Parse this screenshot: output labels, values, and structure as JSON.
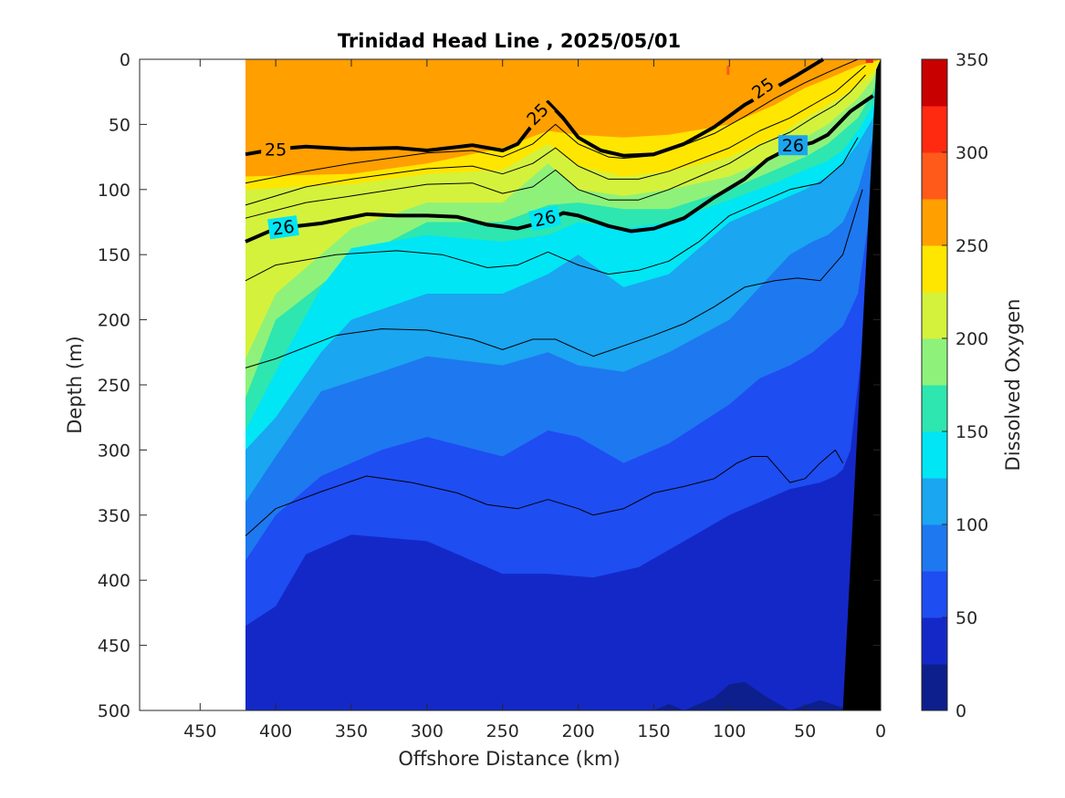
{
  "chart_data": {
    "type": "filled-contour section",
    "title": "Trinidad Head Line , 2025/05/01",
    "xlabel": "Offshore Distance (km)",
    "ylabel": "Depth (m)",
    "colorbar_label": "Dissolved Oxygen",
    "x_reversed": true,
    "xlim": [
      0,
      490
    ],
    "ylim": [
      0,
      500
    ],
    "y_reversed": true,
    "x_ticks": [
      450,
      400,
      350,
      300,
      250,
      200,
      150,
      100,
      50,
      0
    ],
    "y_ticks": [
      0,
      50,
      100,
      150,
      200,
      250,
      300,
      350,
      400,
      450,
      500
    ],
    "data_extent_km": [
      0,
      420
    ],
    "colorbar": {
      "ticks": [
        0,
        50,
        100,
        150,
        200,
        250,
        300,
        350
      ],
      "levels": [
        0,
        25,
        50,
        75,
        100,
        125,
        150,
        175,
        200,
        225,
        250,
        275,
        300,
        325,
        350
      ],
      "colors": [
        "#0c1f8c",
        "#1428c8",
        "#1e4df2",
        "#1e78f0",
        "#1aa6f0",
        "#00e6f5",
        "#2ee6b0",
        "#8ef27a",
        "#d4f23c",
        "#ffe600",
        "#ff9f00",
        "#ff5a1a",
        "#ff2a10",
        "#c80000"
      ]
    },
    "oxygen_boundaries": [
      {
        "level": 250,
        "x": [
          420,
          350,
          300,
          250,
          220,
          200,
          170,
          140,
          100,
          70,
          50,
          35,
          25,
          15,
          5,
          0
        ],
        "depth": [
          90,
          88,
          80,
          68,
          55,
          58,
          60,
          58,
          50,
          35,
          22,
          15,
          10,
          5,
          2,
          0
        ]
      },
      {
        "level": 225,
        "x": [
          420,
          350,
          300,
          250,
          220,
          200,
          170,
          140,
          100,
          70,
          50,
          35,
          25,
          15,
          5,
          0
        ],
        "depth": [
          100,
          96,
          88,
          85,
          65,
          82,
          90,
          86,
          75,
          60,
          45,
          35,
          28,
          20,
          10,
          0
        ]
      },
      {
        "level": 200,
        "x": [
          420,
          400,
          350,
          300,
          250,
          220,
          200,
          170,
          140,
          100,
          70,
          50,
          35,
          25,
          15,
          5,
          0
        ],
        "depth": [
          230,
          180,
          130,
          110,
          110,
          80,
          100,
          105,
          100,
          90,
          75,
          60,
          50,
          40,
          30,
          15,
          0
        ]
      },
      {
        "level": 175,
        "x": [
          420,
          400,
          350,
          300,
          250,
          220,
          200,
          170,
          140,
          100,
          70,
          50,
          35,
          25,
          15,
          5,
          0
        ],
        "depth": [
          260,
          200,
          155,
          125,
          125,
          112,
          110,
          115,
          115,
          100,
          85,
          75,
          65,
          55,
          45,
          25,
          0
        ]
      },
      {
        "level": 150,
        "x": [
          420,
          400,
          370,
          350,
          300,
          250,
          220,
          200,
          170,
          140,
          100,
          70,
          50,
          35,
          25,
          15,
          5,
          0
        ],
        "depth": [
          285,
          240,
          175,
          145,
          135,
          140,
          135,
          125,
          130,
          125,
          108,
          95,
          85,
          78,
          70,
          55,
          35,
          0
        ]
      },
      {
        "level": 125,
        "x": [
          420,
          400,
          370,
          350,
          300,
          250,
          220,
          200,
          170,
          140,
          100,
          70,
          50,
          35,
          25,
          15,
          5,
          0
        ],
        "depth": [
          300,
          275,
          225,
          200,
          180,
          180,
          165,
          150,
          175,
          165,
          125,
          110,
          100,
          90,
          80,
          65,
          45,
          0
        ]
      },
      {
        "level": 100,
        "x": [
          420,
          400,
          370,
          330,
          300,
          250,
          220,
          200,
          170,
          140,
          100,
          80,
          60,
          45,
          35,
          25,
          15,
          5,
          0
        ],
        "depth": [
          340,
          305,
          255,
          240,
          228,
          235,
          225,
          235,
          240,
          225,
          200,
          175,
          150,
          140,
          135,
          125,
          100,
          60,
          0
        ]
      },
      {
        "level": 75,
        "x": [
          420,
          400,
          370,
          330,
          300,
          250,
          220,
          200,
          170,
          140,
          100,
          80,
          60,
          45,
          35,
          25,
          15,
          5,
          0
        ],
        "depth": [
          385,
          350,
          320,
          300,
          290,
          305,
          285,
          290,
          310,
          295,
          265,
          245,
          235,
          225,
          215,
          205,
          180,
          100,
          0
        ]
      },
      {
        "level": 50,
        "x": [
          420,
          400,
          380,
          350,
          300,
          250,
          220,
          190,
          160,
          130,
          100,
          80,
          60,
          40,
          30,
          25,
          20,
          10,
          0
        ],
        "depth": [
          435,
          420,
          380,
          365,
          370,
          395,
          395,
          398,
          390,
          370,
          350,
          340,
          330,
          325,
          320,
          315,
          300,
          200,
          0
        ]
      },
      {
        "level": 25,
        "x": [
          150,
          140,
          130,
          110,
          100,
          90,
          75,
          60,
          40,
          25,
          20,
          0
        ],
        "depth": [
          500,
          495,
          500,
          490,
          480,
          478,
          490,
          500,
          492,
          498,
          500,
          500
        ]
      }
    ],
    "density_contours": [
      {
        "label": "25",
        "bold": true,
        "x": [
          420,
          400,
          380,
          350,
          320,
          300,
          270,
          250,
          240,
          230,
          225,
          220,
          210,
          200,
          185,
          170,
          150,
          130,
          110,
          90,
          70,
          55,
          45,
          38
        ],
        "depth": [
          73,
          69,
          67,
          69,
          68,
          70,
          66,
          70,
          65,
          50,
          40,
          33,
          45,
          60,
          70,
          74,
          73,
          65,
          52,
          35,
          22,
          12,
          5,
          0
        ]
      },
      {
        "label": "26",
        "bold": true,
        "x": [
          420,
          400,
          370,
          340,
          320,
          300,
          280,
          260,
          240,
          220,
          210,
          200,
          180,
          165,
          150,
          130,
          110,
          90,
          75,
          60,
          45,
          35,
          20,
          10,
          5
        ],
        "depth": [
          140,
          130,
          126,
          119,
          120,
          120,
          121,
          127,
          130,
          124,
          118,
          120,
          128,
          132,
          130,
          122,
          106,
          92,
          77,
          68,
          64,
          58,
          40,
          32,
          28
        ]
      },
      {
        "label": "",
        "bold": false,
        "x": [
          420,
          380,
          350,
          300,
          270,
          250,
          230,
          215,
          200,
          180,
          170,
          150,
          130,
          110,
          90,
          70,
          50,
          35,
          25,
          15
        ],
        "depth": [
          95,
          86,
          80,
          72,
          70,
          75,
          65,
          50,
          65,
          75,
          76,
          74,
          66,
          57,
          44,
          30,
          18,
          10,
          5,
          0
        ]
      },
      {
        "label": "",
        "bold": false,
        "x": [
          420,
          380,
          350,
          300,
          270,
          250,
          230,
          215,
          200,
          180,
          160,
          140,
          120,
          100,
          80,
          60,
          45,
          30,
          20,
          10
        ],
        "depth": [
          112,
          98,
          92,
          84,
          82,
          88,
          80,
          68,
          82,
          92,
          92,
          86,
          77,
          68,
          55,
          45,
          35,
          25,
          15,
          5
        ]
      },
      {
        "label": "",
        "bold": false,
        "x": [
          420,
          380,
          350,
          300,
          270,
          250,
          230,
          215,
          200,
          180,
          160,
          140,
          120,
          100,
          80,
          60,
          45,
          30,
          20,
          10
        ],
        "depth": [
          122,
          110,
          105,
          96,
          95,
          103,
          98,
          85,
          100,
          108,
          108,
          100,
          90,
          80,
          66,
          56,
          45,
          35,
          25,
          12
        ]
      },
      {
        "label": "",
        "bold": false,
        "x": [
          420,
          400,
          360,
          320,
          290,
          260,
          240,
          220,
          200,
          180,
          160,
          140,
          120,
          100,
          80,
          60,
          40,
          25,
          15
        ],
        "depth": [
          170,
          158,
          150,
          147,
          150,
          160,
          158,
          148,
          158,
          165,
          162,
          155,
          140,
          120,
          110,
          100,
          95,
          80,
          60
        ]
      },
      {
        "label": "",
        "bold": false,
        "x": [
          420,
          400,
          360,
          330,
          300,
          270,
          250,
          230,
          215,
          200,
          190,
          170,
          150,
          130,
          110,
          90,
          70,
          55,
          40,
          25,
          12
        ],
        "depth": [
          237,
          230,
          212,
          207,
          208,
          215,
          223,
          215,
          215,
          223,
          228,
          220,
          212,
          203,
          190,
          175,
          170,
          168,
          170,
          150,
          100
        ]
      },
      {
        "label": "",
        "bold": false,
        "x": [
          420,
          400,
          370,
          340,
          310,
          280,
          260,
          240,
          220,
          200,
          190,
          170,
          150,
          130,
          110,
          95,
          85,
          75,
          60,
          50,
          40,
          30,
          25
        ],
        "depth": [
          366,
          345,
          332,
          320,
          325,
          333,
          342,
          345,
          338,
          345,
          350,
          345,
          333,
          328,
          322,
          310,
          305,
          305,
          325,
          322,
          310,
          300,
          310
        ]
      }
    ],
    "bathymetry": {
      "x": [
        0,
        25,
        20,
        10,
        5,
        0
      ],
      "depth": [
        0,
        500,
        500,
        500,
        500,
        500
      ],
      "color": "#000000"
    }
  }
}
